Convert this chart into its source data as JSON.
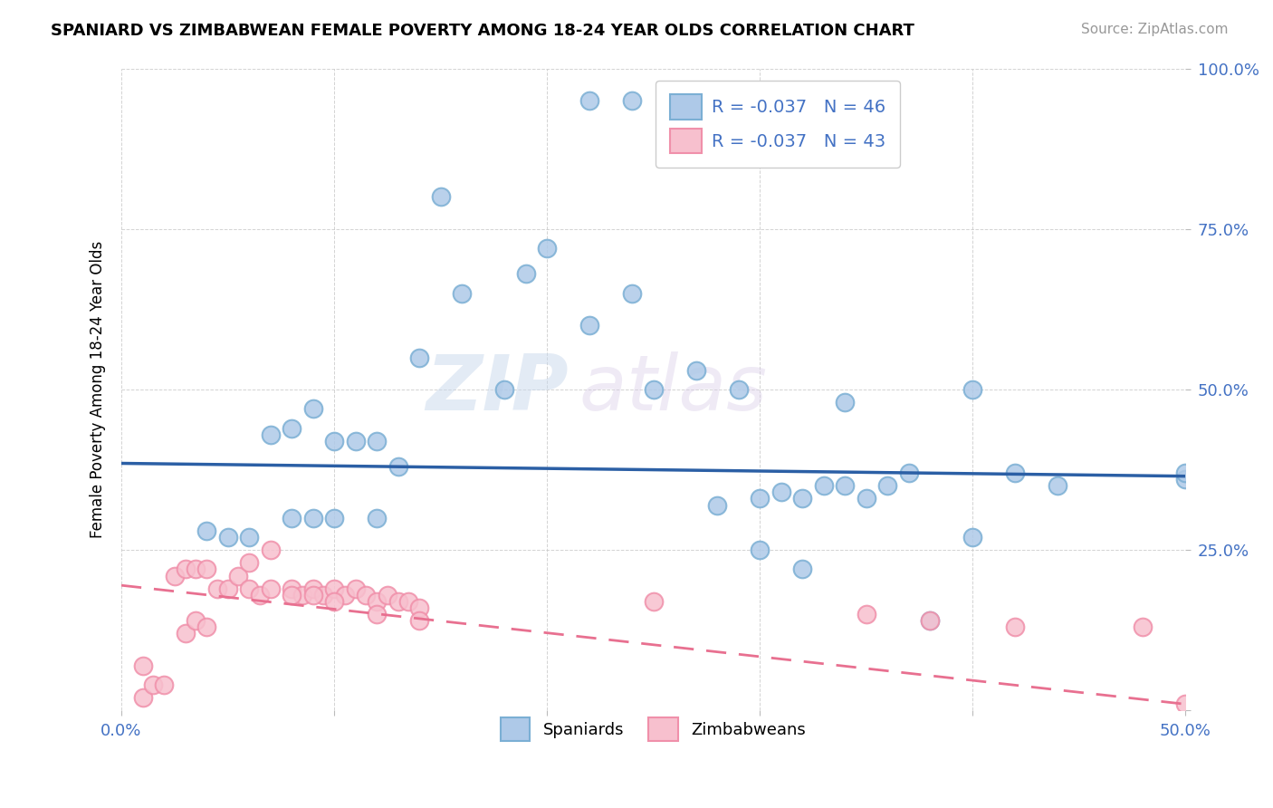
{
  "title": "SPANIARD VS ZIMBABWEAN FEMALE POVERTY AMONG 18-24 YEAR OLDS CORRELATION CHART",
  "source": "Source: ZipAtlas.com",
  "ylabel_label": "Female Poverty Among 18-24 Year Olds",
  "xlim": [
    0.0,
    0.5
  ],
  "ylim": [
    0.0,
    1.0
  ],
  "xticks": [
    0.0,
    0.1,
    0.2,
    0.3,
    0.4,
    0.5
  ],
  "xtick_labels": [
    "0.0%",
    "",
    "",
    "",
    "",
    "50.0%"
  ],
  "ytick_labels_right": [
    "",
    "25.0%",
    "50.0%",
    "75.0%",
    "100.0%"
  ],
  "yticks_right": [
    0.0,
    0.25,
    0.5,
    0.75,
    1.0
  ],
  "legend_blue_label": "R = -0.037   N = 46",
  "legend_pink_label": "R = -0.037   N = 43",
  "legend_sublabel_blue": "Spaniards",
  "legend_sublabel_pink": "Zimbabweans",
  "blue_color": "#aec9e8",
  "pink_color": "#f7c0ce",
  "blue_edge_color": "#7bafd4",
  "pink_edge_color": "#f090aa",
  "blue_line_color": "#2b5fa5",
  "pink_line_color": "#e87090",
  "watermark_zip": "ZIP",
  "watermark_atlas": "atlas",
  "spaniards_x": [
    0.22,
    0.24,
    0.07,
    0.08,
    0.09,
    0.1,
    0.11,
    0.12,
    0.13,
    0.14,
    0.15,
    0.16,
    0.18,
    0.19,
    0.2,
    0.22,
    0.24,
    0.25,
    0.27,
    0.29,
    0.3,
    0.31,
    0.32,
    0.32,
    0.33,
    0.34,
    0.34,
    0.35,
    0.36,
    0.37,
    0.38,
    0.4,
    0.4,
    0.42,
    0.44,
    0.5,
    0.5,
    0.04,
    0.05,
    0.06,
    0.08,
    0.09,
    0.1,
    0.12,
    0.28,
    0.3
  ],
  "spaniards_y": [
    0.95,
    0.95,
    0.43,
    0.44,
    0.47,
    0.42,
    0.42,
    0.42,
    0.38,
    0.55,
    0.8,
    0.65,
    0.5,
    0.68,
    0.72,
    0.6,
    0.65,
    0.5,
    0.53,
    0.5,
    0.33,
    0.34,
    0.22,
    0.33,
    0.35,
    0.35,
    0.48,
    0.33,
    0.35,
    0.37,
    0.14,
    0.27,
    0.5,
    0.37,
    0.35,
    0.36,
    0.37,
    0.28,
    0.27,
    0.27,
    0.3,
    0.3,
    0.3,
    0.3,
    0.32,
    0.25
  ],
  "zimbabweans_x": [
    0.01,
    0.01,
    0.015,
    0.02,
    0.025,
    0.03,
    0.03,
    0.035,
    0.035,
    0.04,
    0.04,
    0.045,
    0.05,
    0.055,
    0.06,
    0.06,
    0.065,
    0.07,
    0.07,
    0.08,
    0.085,
    0.09,
    0.095,
    0.1,
    0.105,
    0.11,
    0.115,
    0.12,
    0.125,
    0.13,
    0.135,
    0.14,
    0.08,
    0.09,
    0.1,
    0.12,
    0.14,
    0.25,
    0.35,
    0.38,
    0.42,
    0.48,
    0.5
  ],
  "zimbabweans_y": [
    0.02,
    0.07,
    0.04,
    0.04,
    0.21,
    0.22,
    0.12,
    0.14,
    0.22,
    0.13,
    0.22,
    0.19,
    0.19,
    0.21,
    0.19,
    0.23,
    0.18,
    0.19,
    0.25,
    0.19,
    0.18,
    0.19,
    0.18,
    0.19,
    0.18,
    0.19,
    0.18,
    0.17,
    0.18,
    0.17,
    0.17,
    0.16,
    0.18,
    0.18,
    0.17,
    0.15,
    0.14,
    0.17,
    0.15,
    0.14,
    0.13,
    0.13,
    0.01
  ],
  "blue_trend_x": [
    0.0,
    0.5
  ],
  "blue_trend_y": [
    0.385,
    0.365
  ],
  "pink_trend_x": [
    0.0,
    0.5
  ],
  "pink_trend_y": [
    0.195,
    0.01
  ]
}
